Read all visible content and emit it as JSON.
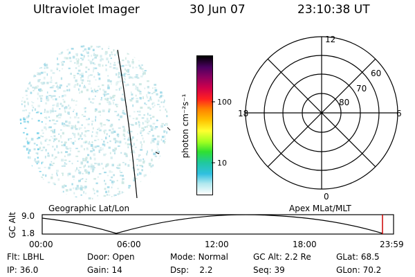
{
  "header": {
    "instrument": "Ultraviolet Imager",
    "date": "30 Jun 07",
    "time": "23:10:38 UT"
  },
  "colorbar": {
    "unit_label": "photon cm⁻²s⁻¹",
    "ticks": [
      "100",
      "10"
    ],
    "colors": [
      "#000000",
      "#4a0060",
      "#8a0060",
      "#d0004a",
      "#ff2020",
      "#ff8000",
      "#ffc000",
      "#ffff30",
      "#a0ff20",
      "#30e030",
      "#20c8a0",
      "#30c0e0",
      "#b0e8ee",
      "#ffffff"
    ]
  },
  "polar_plot": {
    "mlt_labels": {
      "top": "12",
      "left": "18",
      "right": "6",
      "bottom": "0"
    },
    "lat_labels": [
      "60",
      "70",
      "80"
    ]
  },
  "timeline": {
    "y_axis_label": "GC Alt",
    "y_top": "9.0",
    "y_bottom": "1.8",
    "left_caption": "Geographic Lat/Lon",
    "right_caption": "Apex MLat/MLT",
    "time_labels": [
      "00:00",
      "06:00",
      "12:00",
      "18:00",
      "23:59"
    ],
    "current_marker_color": "#cc0000"
  },
  "info": {
    "row1": [
      {
        "key": "Flt:",
        "value": "LBHL"
      },
      {
        "key": "Door:",
        "value": "Open"
      },
      {
        "key": "Mode:",
        "value": "Normal"
      },
      {
        "key": "GC Alt:",
        "value": "2.2 Re"
      },
      {
        "key": "GLat:",
        "value": "68.5"
      }
    ],
    "row2": [
      {
        "key": "IP:",
        "value": "36.0"
      },
      {
        "key": "Gain:",
        "value": "14"
      },
      {
        "key": "Dsp:",
        "value": "2.2"
      },
      {
        "key": "Seq:",
        "value": "39"
      },
      {
        "key": "GLon:",
        "value": "70.2"
      }
    ]
  }
}
